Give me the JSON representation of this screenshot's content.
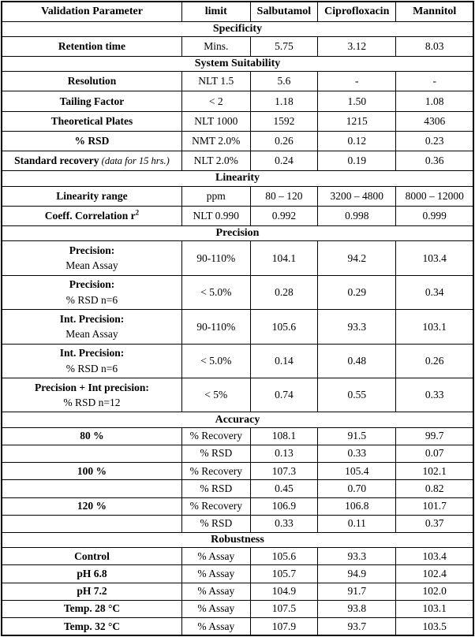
{
  "table": {
    "columns": [
      "Validation Parameter",
      "limit",
      "Salbutamol",
      "Ciprofloxacin",
      "Mannitol"
    ],
    "sections": [
      {
        "title": "Specificity",
        "compact": false,
        "rows": [
          {
            "param": "Retention time",
            "limit": "Mins.",
            "values": [
              "5.75",
              "3.12",
              "8.03"
            ]
          }
        ]
      },
      {
        "title": "System Suitability",
        "compact": false,
        "rows": [
          {
            "param": "Resolution",
            "limit": "NLT 1.5",
            "values": [
              "5.6",
              "-",
              "-"
            ]
          },
          {
            "param": "Tailing Factor",
            "limit": "< 2",
            "values": [
              "1.18",
              "1.50",
              "1.08"
            ]
          },
          {
            "param": "Theoretical Plates",
            "limit": "NLT 1000",
            "values": [
              "1592",
              "1215",
              "4306"
            ]
          },
          {
            "param": "% RSD",
            "limit": "NMT 2.0%",
            "values": [
              "0.26",
              "0.12",
              "0.23"
            ]
          },
          {
            "param": "Standard recovery",
            "note": "(data for 15 hrs.)",
            "limit": "NLT 2.0%",
            "values": [
              "0.24",
              "0.19",
              "0.36"
            ]
          }
        ]
      },
      {
        "title": "Linearity",
        "compact": false,
        "rows": [
          {
            "param": "Linearity range",
            "limit": "ppm",
            "values": [
              "80 – 120",
              "3200 – 4800",
              "8000 – 12000"
            ]
          },
          {
            "param": "Coeff. Correlation r",
            "sup": "2",
            "limit": "NLT 0.990",
            "values": [
              "0.992",
              "0.998",
              "0.999"
            ]
          }
        ]
      },
      {
        "title": "Precision",
        "compact": false,
        "rows": [
          {
            "param": "Precision:",
            "line2": "Mean Assay",
            "limit": "90-110%",
            "values": [
              "104.1",
              "94.2",
              "103.4"
            ]
          },
          {
            "param": "Precision:",
            "line2": "% RSD n=6",
            "limit": "< 5.0%",
            "values": [
              "0.28",
              "0.29",
              "0.34"
            ]
          },
          {
            "param": "Int. Precision:",
            "line2": "Mean Assay",
            "limit": "90-110%",
            "values": [
              "105.6",
              "93.3",
              "103.1"
            ]
          },
          {
            "param": "Int. Precision:",
            "line2": "% RSD n=6",
            "limit": "< 5.0%",
            "values": [
              "0.14",
              "0.48",
              "0.26"
            ]
          },
          {
            "param": "Precision + Int precision:",
            "line2": "% RSD n=12",
            "limit": "< 5%",
            "values": [
              "0.74",
              "0.55",
              "0.33"
            ]
          }
        ]
      },
      {
        "title": "Accuracy",
        "compact": true,
        "rows": [
          {
            "param": "80 %",
            "limit": "% Recovery",
            "values": [
              "108.1",
              "91.5",
              "99.7"
            ]
          },
          {
            "param": "",
            "limit": "% RSD",
            "values": [
              "0.13",
              "0.33",
              "0.07"
            ]
          },
          {
            "param": "100 %",
            "limit": "% Recovery",
            "values": [
              "107.3",
              "105.4",
              "102.1"
            ]
          },
          {
            "param": "",
            "limit": "% RSD",
            "values": [
              "0.45",
              "0.70",
              "0.82"
            ]
          },
          {
            "param": "120 %",
            "limit": "% Recovery",
            "values": [
              "106.9",
              "106.8",
              "101.7"
            ]
          },
          {
            "param": "",
            "limit": "% RSD",
            "values": [
              "0.33",
              "0.11",
              "0.37"
            ]
          }
        ]
      },
      {
        "title": "Robustness",
        "compact": true,
        "rows": [
          {
            "param": "Control",
            "limit": "% Assay",
            "values": [
              "105.6",
              "93.3",
              "103.4"
            ]
          },
          {
            "param": "pH 6.8",
            "limit": "% Assay",
            "values": [
              "105.7",
              "94.9",
              "102.4"
            ]
          },
          {
            "param": "pH 7.2",
            "limit": "% Assay",
            "values": [
              "104.9",
              "91.7",
              "102.0"
            ]
          },
          {
            "param": "Temp. 28 °C",
            "limit": "% Assay",
            "values": [
              "107.5",
              "93.8",
              "103.1"
            ]
          },
          {
            "param": "Temp. 32 °C",
            "limit": "% Assay",
            "values": [
              "107.9",
              "93.7",
              "103.5"
            ]
          }
        ]
      }
    ]
  }
}
